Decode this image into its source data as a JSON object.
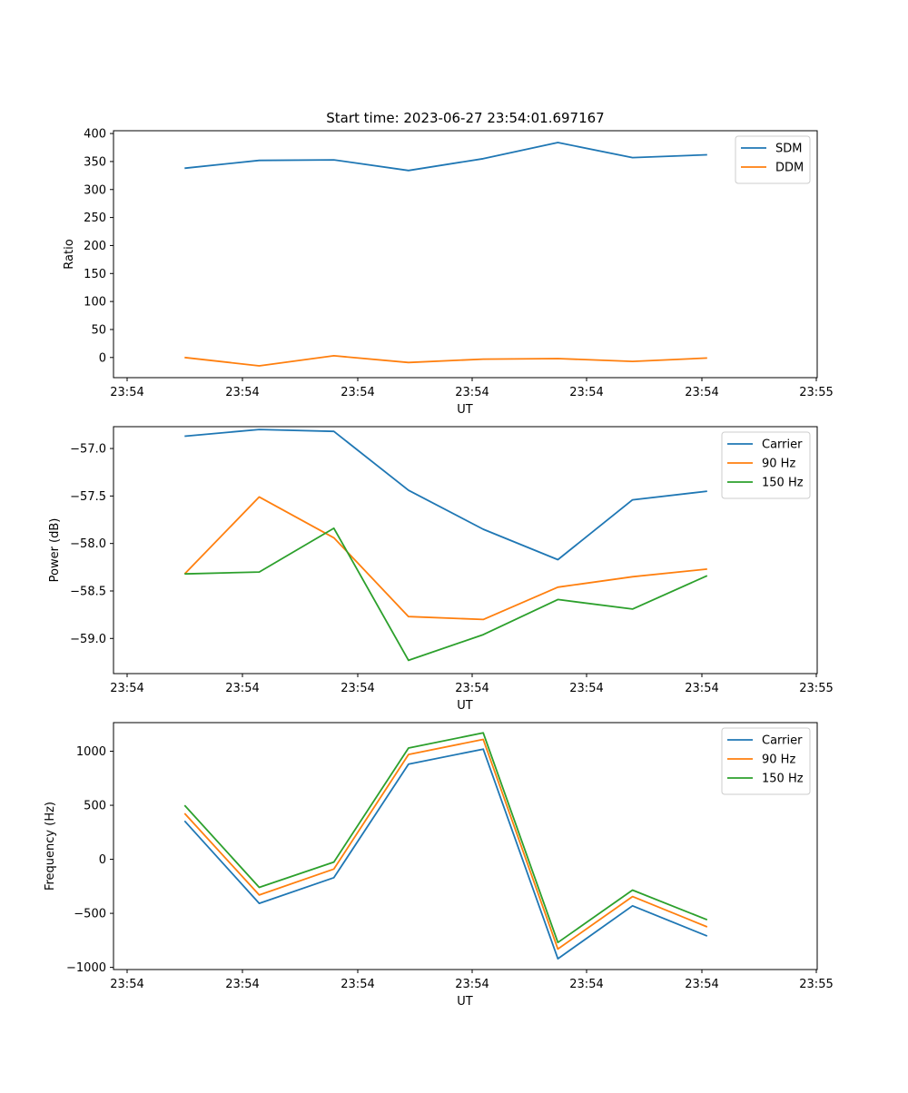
{
  "title": "Start time: 2023-06-27 23:54:01.697167",
  "chart_data": [
    {
      "type": "line",
      "xlabel": "UT",
      "ylabel": "Ratio",
      "xticks": [
        "23:54",
        "23:54",
        "23:54",
        "23:54",
        "23:54",
        "23:54",
        "23:55"
      ],
      "xlim": [
        0,
        6
      ],
      "yticks": [
        0,
        50,
        100,
        150,
        200,
        250,
        300,
        350,
        400
      ],
      "ylim": [
        -36,
        405
      ],
      "x": [
        0.5,
        1.15,
        1.8,
        2.45,
        3.1,
        3.75,
        4.4,
        5.05
      ],
      "series": [
        {
          "name": "SDM",
          "color": "#1f77b4",
          "values": [
            338,
            352,
            353,
            334,
            355,
            384,
            357,
            362
          ]
        },
        {
          "name": "DDM",
          "color": "#ff7f0e",
          "values": [
            0,
            -15,
            3,
            -9,
            -3,
            -2,
            -7,
            -1
          ]
        }
      ],
      "legend": "top-right"
    },
    {
      "type": "line",
      "xlabel": "UT",
      "ylabel": "Power (dB)",
      "xticks": [
        "23:54",
        "23:54",
        "23:54",
        "23:54",
        "23:54",
        "23:54",
        "23:55"
      ],
      "xlim": [
        0,
        6
      ],
      "yticks": [
        -57.0,
        -57.5,
        -58.0,
        -58.5,
        -59.0
      ],
      "yticklabels": [
        "−57.0",
        "−57.5",
        "−58.0",
        "−58.5",
        "−59.0"
      ],
      "ylim": [
        -59.37,
        -56.77
      ],
      "x": [
        0.5,
        1.15,
        1.8,
        2.45,
        3.1,
        3.75,
        4.4,
        5.05
      ],
      "series": [
        {
          "name": "Carrier",
          "color": "#1f77b4",
          "values": [
            -56.87,
            -56.8,
            -56.82,
            -57.44,
            -57.85,
            -58.17,
            -57.54,
            -57.45
          ]
        },
        {
          "name": "90 Hz",
          "color": "#ff7f0e",
          "values": [
            -58.32,
            -57.51,
            -57.94,
            -58.77,
            -58.8,
            -58.46,
            -58.35,
            -58.27
          ]
        },
        {
          "name": "150 Hz",
          "color": "#2ca02c",
          "values": [
            -58.32,
            -58.3,
            -57.84,
            -59.23,
            -58.96,
            -58.59,
            -58.69,
            -58.34
          ]
        }
      ],
      "legend": "top-right"
    },
    {
      "type": "line",
      "xlabel": "UT",
      "ylabel": "Frequency (Hz)",
      "xticks": [
        "23:54",
        "23:54",
        "23:54",
        "23:54",
        "23:54",
        "23:54",
        "23:55"
      ],
      "xlim": [
        0,
        6
      ],
      "yticks": [
        1000,
        500,
        0,
        -500,
        -1000
      ],
      "yticklabels": [
        "1000",
        "500",
        "0",
        "−500",
        "−1000"
      ],
      "ylim": [
        -1020,
        1265
      ],
      "x": [
        0.5,
        1.15,
        1.8,
        2.45,
        3.1,
        3.75,
        4.4,
        5.05
      ],
      "series": [
        {
          "name": "Carrier",
          "color": "#1f77b4",
          "values": [
            355,
            -408,
            -170,
            880,
            1020,
            -920,
            -430,
            -710
          ]
        },
        {
          "name": "90 Hz",
          "color": "#ff7f0e",
          "values": [
            425,
            -330,
            -90,
            970,
            1110,
            -830,
            -345,
            -625
          ]
        },
        {
          "name": "150 Hz",
          "color": "#2ca02c",
          "values": [
            500,
            -260,
            -25,
            1030,
            1170,
            -770,
            -285,
            -560
          ]
        }
      ],
      "legend": "top-right"
    }
  ]
}
